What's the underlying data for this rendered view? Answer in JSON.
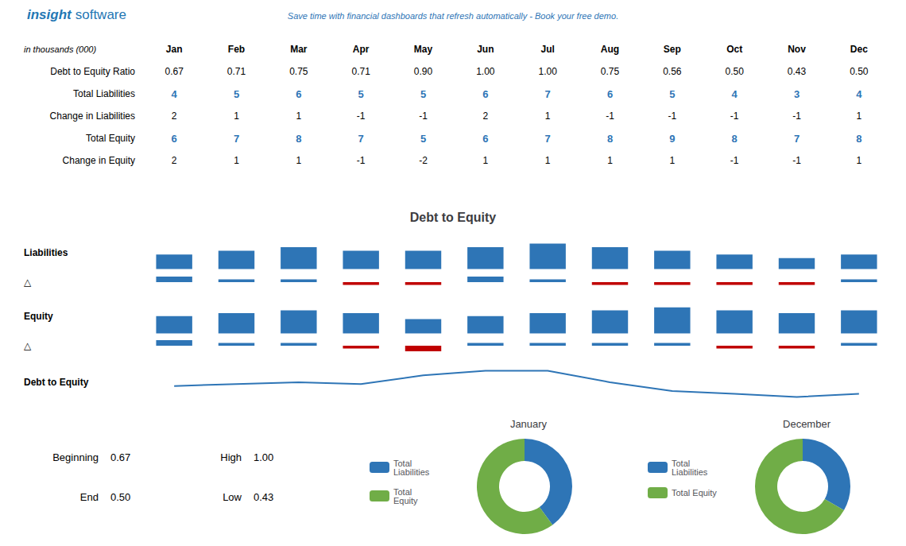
{
  "chart_data": [
    {
      "type": "table",
      "annotations": [
        {
          "text": "insight",
          "color": "#1F77B4"
        },
        {
          "text": "software",
          "color": "#1F77B4"
        },
        {
          "text": "Save time with financial dashboards that refresh automatically - Book your free demo.",
          "color": "#2E75B6"
        }
      ],
      "subtitle": "in thousands (000)",
      "categories": [
        "Jan",
        "Feb",
        "Mar",
        "Apr",
        "May",
        "Jun",
        "Jul",
        "Aug",
        "Sep",
        "Oct",
        "Nov",
        "Dec"
      ],
      "series": [
        {
          "name": "Debt to Equity Ratio",
          "values": [
            0.67,
            0.71,
            0.75,
            0.71,
            0.9,
            1.0,
            1.0,
            0.75,
            0.56,
            0.5,
            0.43,
            0.5
          ],
          "value_labels": [
            "0.67",
            "0.71",
            "0.75",
            "0.71",
            "0.90",
            "1.00",
            "1.00",
            "0.75",
            "0.56",
            "0.50",
            "0.43",
            "0.50"
          ]
        },
        {
          "name": "Total Liabilities",
          "color": "#2E75B6",
          "values": [
            4,
            5,
            6,
            5,
            5,
            6,
            7,
            6,
            5,
            4,
            3,
            4
          ]
        },
        {
          "name": "Change in Liabilities",
          "values": [
            2,
            1,
            1,
            -1,
            -1,
            2,
            1,
            -1,
            -1,
            -1,
            -1,
            1
          ]
        },
        {
          "name": "Total Equity",
          "color": "#2E75B6",
          "values": [
            6,
            7,
            8,
            7,
            5,
            6,
            7,
            8,
            9,
            8,
            7,
            8
          ]
        },
        {
          "name": "Change in Equity",
          "values": [
            2,
            1,
            1,
            -1,
            -2,
            1,
            1,
            1,
            1,
            -1,
            -1,
            1
          ]
        }
      ]
    },
    {
      "type": "bar",
      "title": "Debt to Equity",
      "ylabel": "Liabilities",
      "categories": [
        "Jan",
        "Feb",
        "Mar",
        "Apr",
        "May",
        "Jun",
        "Jul",
        "Aug",
        "Sep",
        "Oct",
        "Nov",
        "Dec"
      ],
      "values": [
        4,
        5,
        6,
        5,
        5,
        6,
        7,
        6,
        5,
        4,
        3,
        4
      ],
      "color": "#2E75B6",
      "ylim": [
        -1.2,
        10.15
      ],
      "tick_labels": false
    },
    {
      "type": "bar",
      "ylabel": "△",
      "categories": [
        "Jan",
        "Feb",
        "Mar",
        "Apr",
        "May",
        "Jun",
        "Jul",
        "Aug",
        "Sep",
        "Oct",
        "Nov",
        "Dec"
      ],
      "values": [
        2,
        1,
        1,
        -1,
        -1,
        2,
        1,
        -1,
        -1,
        -1,
        -1,
        1
      ],
      "colors": [
        "#2E75B6",
        "#2E75B6",
        "#2E75B6",
        "#C00000",
        "#C00000",
        "#2E75B6",
        "#2E75B6",
        "#C00000",
        "#C00000",
        "#C00000",
        "#C00000",
        "#2E75B6"
      ],
      "ylim": [
        -2,
        2
      ],
      "tick_labels": false
    },
    {
      "type": "bar",
      "ylabel": "Equity",
      "categories": [
        "Jan",
        "Feb",
        "Mar",
        "Apr",
        "May",
        "Jun",
        "Jul",
        "Aug",
        "Sep",
        "Oct",
        "Nov",
        "Dec"
      ],
      "values": [
        6,
        7,
        8,
        7,
        5,
        6,
        7,
        8,
        9,
        8,
        7,
        8
      ],
      "color": "#2E75B6",
      "ylim": [
        -1.2,
        13.05
      ],
      "tick_labels": false
    },
    {
      "type": "bar",
      "ylabel": "△",
      "categories": [
        "Jan",
        "Feb",
        "Mar",
        "Apr",
        "May",
        "Jun",
        "Jul",
        "Aug",
        "Sep",
        "Oct",
        "Nov",
        "Dec"
      ],
      "values": [
        2,
        1,
        1,
        -1,
        -2,
        1,
        1,
        1,
        1,
        -1,
        -1,
        1
      ],
      "colors": [
        "#2E75B6",
        "#2E75B6",
        "#2E75B6",
        "#C00000",
        "#C00000",
        "#2E75B6",
        "#2E75B6",
        "#2E75B6",
        "#2E75B6",
        "#C00000",
        "#C00000",
        "#2E75B6"
      ],
      "ylim": [
        -2,
        2
      ],
      "tick_labels": false
    },
    {
      "type": "line",
      "ylabel": "Debt to Equity",
      "categories": [
        "Jan",
        "Feb",
        "Mar",
        "Apr",
        "May",
        "Jun",
        "Jul",
        "Aug",
        "Sep",
        "Oct",
        "Nov",
        "Dec"
      ],
      "values": [
        0.67,
        0.71,
        0.75,
        0.71,
        0.9,
        1.0,
        1.0,
        0.75,
        0.56,
        0.5,
        0.43,
        0.5
      ],
      "color": "#2E75B6",
      "ylim": [
        0.25,
        1.25
      ],
      "tick_labels": false
    },
    {
      "type": "table",
      "categories": [
        "Beginning",
        "End",
        "High",
        "Low"
      ],
      "values": [
        0.67,
        0.5,
        1.0,
        0.43
      ],
      "value_labels": [
        "0.67",
        "0.50",
        "1.00",
        "0.43"
      ]
    },
    {
      "type": "pie",
      "title": "January",
      "categories": [
        "Total\nLiabilities",
        "Total\nEquity"
      ],
      "values": [
        4,
        6
      ],
      "colors": [
        "#2E75B6",
        "#70AD47"
      ],
      "legend": "left"
    },
    {
      "type": "pie",
      "title": "December",
      "categories": [
        "Total\nLiabilities",
        "Total Equity"
      ],
      "values": [
        4,
        8
      ],
      "colors": [
        "#2E75B6",
        "#70AD47"
      ],
      "legend": "left"
    }
  ]
}
